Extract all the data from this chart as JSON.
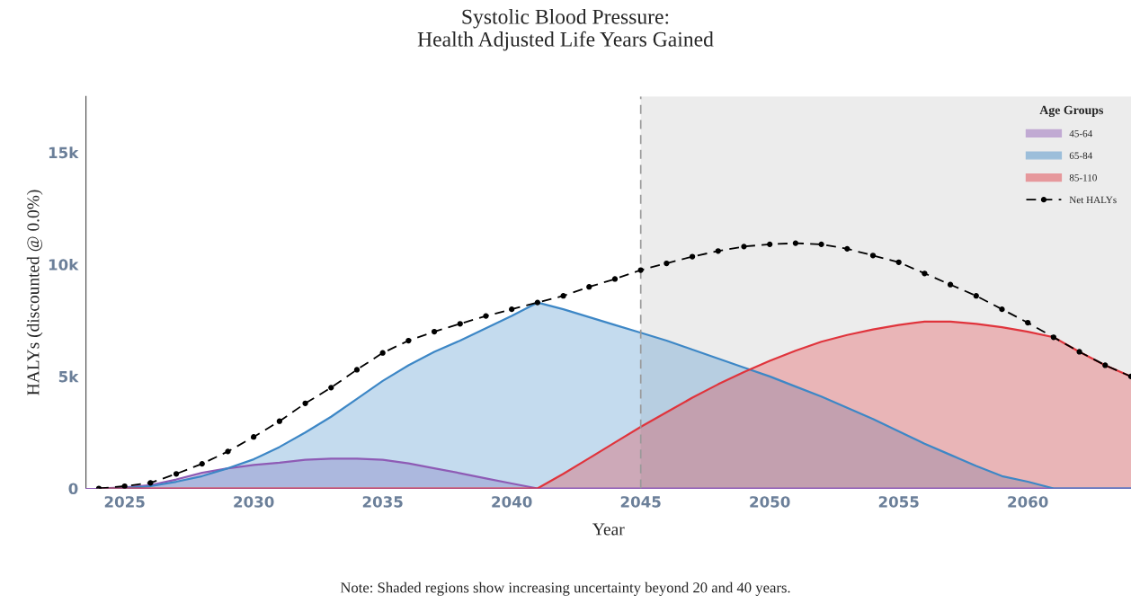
{
  "chart_data": {
    "type": "area",
    "title": "Systolic Blood Pressure:\nHealth Adjusted Life Years Gained",
    "xlabel": "Year",
    "ylabel": "HALYs (discounted @ 0.0%)",
    "legend_title": "Age Groups",
    "x": [
      2024,
      2025,
      2026,
      2027,
      2028,
      2029,
      2030,
      2031,
      2032,
      2033,
      2034,
      2035,
      2036,
      2037,
      2038,
      2039,
      2040,
      2041,
      2042,
      2043,
      2044,
      2045,
      2046,
      2047,
      2048,
      2049,
      2050,
      2051,
      2052,
      2053,
      2054,
      2055,
      2056,
      2057,
      2058,
      2059,
      2060,
      2061,
      2062,
      2063,
      2064
    ],
    "series": [
      {
        "name": "45-64",
        "color": "#8e5bb5",
        "values": [
          0,
          50,
          150,
          400,
          700,
          900,
          1050,
          1150,
          1280,
          1330,
          1330,
          1280,
          1120,
          900,
          680,
          450,
          220,
          0,
          0,
          0,
          0,
          0,
          0,
          0,
          0,
          0,
          0,
          0,
          0,
          0,
          0,
          0,
          0,
          0,
          0,
          0,
          0,
          0,
          0,
          0,
          0
        ]
      },
      {
        "name": "65-84",
        "color": "#3d87c6",
        "values": [
          0,
          20,
          100,
          300,
          550,
          900,
          1300,
          1850,
          2500,
          3200,
          4000,
          4800,
          5500,
          6100,
          6600,
          7150,
          7700,
          8300,
          8000,
          7650,
          7300,
          6950,
          6600,
          6200,
          5800,
          5400,
          5000,
          4550,
          4100,
          3600,
          3100,
          2550,
          2000,
          1500,
          1000,
          550,
          300,
          0,
          0,
          0,
          0
        ]
      },
      {
        "name": "85-110",
        "color": "#e0343c",
        "values": [
          0,
          0,
          0,
          0,
          0,
          0,
          0,
          0,
          0,
          0,
          0,
          0,
          0,
          0,
          0,
          0,
          0,
          0,
          650,
          1350,
          2050,
          2750,
          3400,
          4050,
          4650,
          5200,
          5700,
          6150,
          6550,
          6850,
          7100,
          7300,
          7450,
          7450,
          7350,
          7200,
          7000,
          6750,
          6100,
          5500,
          5000
        ]
      },
      {
        "name": "Net HALYs",
        "type": "line",
        "color": "#000000",
        "marker": "circle",
        "line_style": "dashed",
        "values": [
          0,
          100,
          250,
          650,
          1100,
          1650,
          2300,
          3000,
          3800,
          4500,
          5300,
          6050,
          6600,
          7000,
          7350,
          7700,
          8000,
          8300,
          8600,
          9000,
          9350,
          9750,
          10050,
          10350,
          10600,
          10800,
          10900,
          10950,
          10900,
          10700,
          10400,
          10100,
          9600,
          9100,
          8600,
          8000,
          7400,
          6750,
          6100,
          5500,
          5000
        ]
      }
    ],
    "xlim": [
      2023.5,
      2064
    ],
    "xticks": [
      2025,
      2030,
      2035,
      2040,
      2045,
      2050,
      2055,
      2060
    ],
    "ylim": [
      0,
      17500
    ],
    "yticks": [
      {
        "value": 0,
        "label": "0"
      },
      {
        "value": 5000,
        "label": "5k"
      },
      {
        "value": 10000,
        "label": "10k"
      },
      {
        "value": 15000,
        "label": "15k"
      }
    ],
    "ref_lines": [
      {
        "axis": "x",
        "value": 2045,
        "color": "#999999",
        "line_style": "dashed"
      }
    ],
    "bands": [
      {
        "axis": "x",
        "from": 2045,
        "to": 2064,
        "color": "#ececec"
      }
    ],
    "grid": false,
    "legend": "top right",
    "annotations": [
      "Note: Shaded regions show increasing uncertainty beyond 20 and 40 years."
    ]
  }
}
